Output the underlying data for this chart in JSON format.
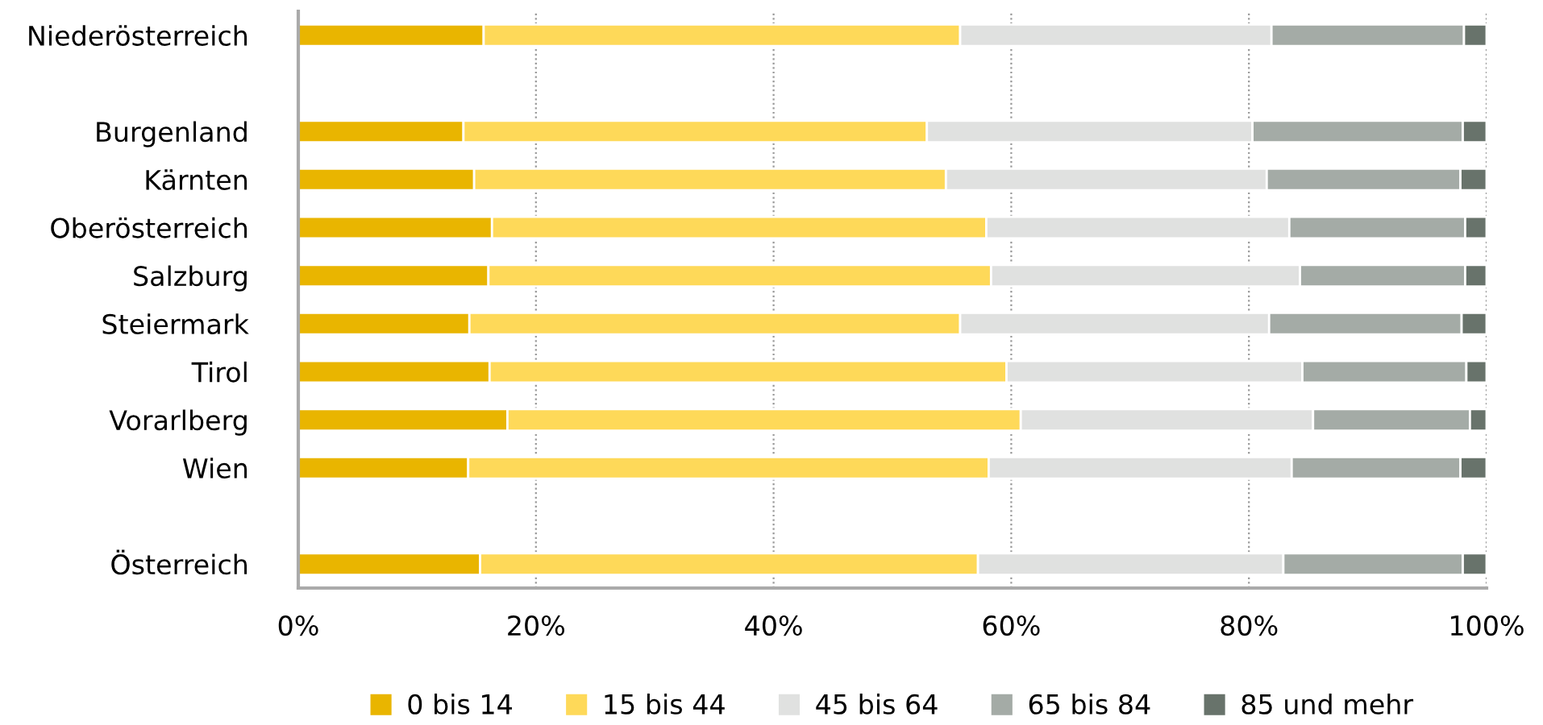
{
  "chart_data": {
    "type": "bar",
    "orientation": "horizontal",
    "stacked": true,
    "categories": [
      "Niederösterreich",
      null,
      "Burgenland",
      "Kärnten",
      "Oberösterreich",
      "Salzburg",
      "Steiermark",
      "Tirol",
      "Vorarlberg",
      "Wien",
      null,
      "Österreich"
    ],
    "series": [
      {
        "name": "0 bis 14",
        "color": "#e9b500",
        "values": [
          15.6,
          null,
          13.9,
          14.8,
          16.3,
          16.0,
          14.4,
          16.1,
          17.6,
          14.3,
          null,
          15.3
        ]
      },
      {
        "name": "15 bis 44",
        "color": "#fed959",
        "values": [
          40.1,
          null,
          39.0,
          39.7,
          41.6,
          42.3,
          41.3,
          43.5,
          43.2,
          43.8,
          null,
          41.9
        ]
      },
      {
        "name": "45 bis 64",
        "color": "#e0e1e0",
        "values": [
          26.2,
          null,
          27.4,
          27.0,
          25.5,
          26.0,
          26.0,
          24.9,
          24.6,
          25.5,
          null,
          25.7
        ]
      },
      {
        "name": "65 bis 84",
        "color": "#a4aba6",
        "values": [
          16.2,
          null,
          17.7,
          16.3,
          14.8,
          13.9,
          16.2,
          13.8,
          13.2,
          14.2,
          null,
          15.1
        ]
      },
      {
        "name": "85 und mehr",
        "color": "#68736b",
        "values": [
          1.9,
          null,
          2.0,
          2.2,
          1.8,
          1.8,
          2.1,
          1.7,
          1.4,
          2.2,
          null,
          2.0
        ]
      }
    ],
    "xlim": [
      0,
      100
    ],
    "xticks": [
      {
        "value": 0,
        "label": "0%"
      },
      {
        "value": 20,
        "label": "20%"
      },
      {
        "value": 40,
        "label": "40%"
      },
      {
        "value": 60,
        "label": "60%"
      },
      {
        "value": 80,
        "label": "80%"
      },
      {
        "value": 100,
        "label": "100%"
      }
    ],
    "grid": "x",
    "legend": "bottom"
  }
}
